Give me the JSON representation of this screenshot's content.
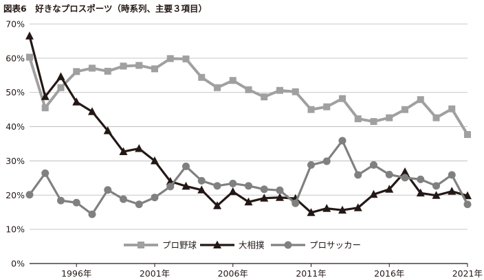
{
  "chart_data": {
    "type": "line",
    "title": "図表6　好きなプロスポーツ（時系列、主要３項目）",
    "x": [
      1993,
      1994,
      1995,
      1996,
      1997,
      1998,
      1999,
      2000,
      2001,
      2002,
      2003,
      2004,
      2005,
      2006,
      2007,
      2008,
      2009,
      2010,
      2011,
      2012,
      2013,
      2014,
      2015,
      2016,
      2017,
      2018,
      2019,
      2020,
      2021
    ],
    "x_ticks": [
      1996,
      2001,
      2006,
      2011,
      2016,
      2021
    ],
    "x_tick_labels": [
      "1996年",
      "2001年",
      "2006年",
      "2011年",
      "2016年",
      "2021年"
    ],
    "y_ticks": [
      0,
      10,
      20,
      30,
      40,
      50,
      60,
      70
    ],
    "y_tick_labels": [
      "0%",
      "10%",
      "20%",
      "30%",
      "40%",
      "50%",
      "60%",
      "70%"
    ],
    "ylim": [
      0,
      70
    ],
    "xlim": [
      1993,
      2021
    ],
    "grid": true,
    "legend_position": "bottom-center",
    "series": [
      {
        "name": "プロ野球",
        "marker": "square",
        "color": "#a0a0a0",
        "values": [
          60.3,
          45.5,
          51.4,
          56.1,
          57.1,
          56.2,
          57.7,
          57.9,
          56.9,
          59.9,
          59.8,
          54.4,
          51.4,
          53.5,
          50.8,
          48.7,
          50.6,
          50.2,
          45.0,
          45.8,
          48.2,
          42.3,
          41.5,
          42.6,
          45.0,
          47.9,
          42.6,
          45.2,
          37.7
        ]
      },
      {
        "name": "大相撲",
        "marker": "triangle",
        "color": "#231815",
        "values": [
          66.5,
          48.8,
          54.6,
          47.2,
          44.4,
          38.8,
          32.7,
          33.6,
          30.0,
          24.0,
          22.6,
          21.5,
          16.9,
          21.0,
          18.0,
          19.1,
          19.3,
          19.0,
          14.9,
          16.1,
          15.6,
          16.3,
          20.2,
          21.7,
          26.8,
          20.6,
          19.9,
          21.1,
          19.8
        ]
      },
      {
        "name": "プロサッカー",
        "marker": "circle",
        "color": "#808080",
        "values": [
          20.1,
          26.4,
          18.4,
          17.8,
          14.4,
          21.5,
          18.8,
          17.3,
          19.3,
          22.5,
          28.4,
          24.2,
          22.7,
          23.4,
          22.7,
          21.7,
          21.4,
          17.6,
          28.8,
          29.9,
          35.9,
          25.9,
          28.8,
          26.0,
          25.1,
          24.6,
          22.7,
          25.9,
          17.3
        ]
      }
    ]
  }
}
